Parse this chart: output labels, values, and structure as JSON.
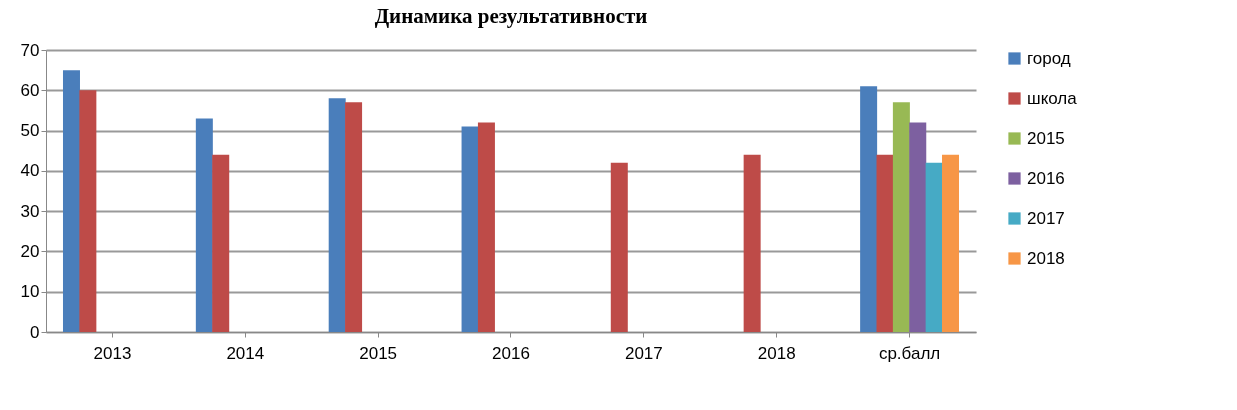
{
  "chart_data": {
    "type": "bar",
    "title": "Динамика результативности",
    "categories": [
      "2013",
      "2014",
      "2015",
      "2016",
      "2017",
      "2018",
      "ср.балл"
    ],
    "series": [
      {
        "name": "город",
        "color": "#4a7ebb",
        "values": [
          65,
          53,
          58,
          51,
          null,
          null,
          61
        ]
      },
      {
        "name": "школа",
        "color": "#be4b48",
        "values": [
          60,
          44,
          57,
          52,
          42,
          44,
          44
        ]
      },
      {
        "name": "2015",
        "color": "#98b954",
        "values": [
          0,
          0,
          0,
          0,
          null,
          null,
          57
        ]
      },
      {
        "name": "2016",
        "color": "#7d60a0",
        "values": [
          0,
          0,
          0,
          0,
          null,
          null,
          52
        ]
      },
      {
        "name": "2017",
        "color": "#46aac5",
        "values": [
          null,
          null,
          null,
          null,
          null,
          null,
          42
        ]
      },
      {
        "name": "2018",
        "color": "#f79646",
        "values": [
          null,
          null,
          null,
          null,
          null,
          null,
          44
        ]
      }
    ],
    "ylim": [
      0,
      70
    ],
    "yticks": [
      0,
      10,
      20,
      30,
      40,
      50,
      60,
      70
    ],
    "grid": "y",
    "legend": "right"
  }
}
